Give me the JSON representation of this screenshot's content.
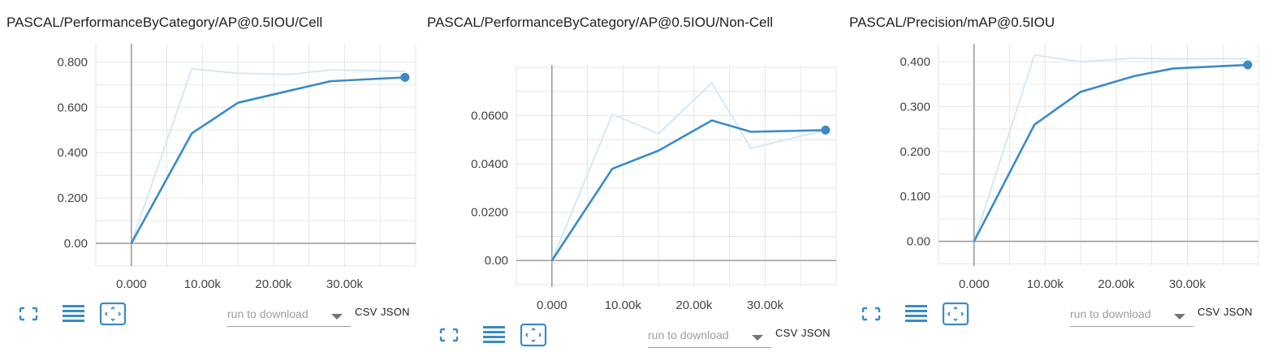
{
  "cards": [
    {
      "title": "PASCAL/PerformanceByCategory/AP@0.5IOU/Cell",
      "toolbar": {
        "fullscreen_icon": "fullscreen-icon",
        "lines_icon": "data-table-icon",
        "fit_icon": "fit-domain-icon",
        "select_placeholder": "run to download",
        "csv_label": "CSV",
        "json_label": "JSON"
      }
    },
    {
      "title": "PASCAL/PerformanceByCategory/AP@0.5IOU/Non-Cell",
      "toolbar": {
        "fullscreen_icon": "fullscreen-icon",
        "lines_icon": "data-table-icon",
        "fit_icon": "fit-domain-icon",
        "select_placeholder": "run to download",
        "csv_label": "CSV",
        "json_label": "JSON"
      }
    },
    {
      "title": "PASCAL/Precision/mAP@0.5IOU",
      "toolbar": {
        "fullscreen_icon": "fullscreen-icon",
        "lines_icon": "data-table-icon",
        "fit_icon": "fit-domain-icon",
        "select_placeholder": "run to download",
        "csv_label": "CSV",
        "json_label": "JSON"
      }
    }
  ],
  "chart_data": [
    {
      "type": "line",
      "title": "PASCAL/PerformanceByCategory/AP@0.5IOU/Cell",
      "xlim": [
        -5000,
        40000
      ],
      "ylim": [
        -0.1,
        0.88
      ],
      "xticks": [
        0,
        10000,
        20000,
        30000
      ],
      "xtick_labels": [
        "0.000",
        "10.00k",
        "20.00k",
        "30.00k"
      ],
      "yticks": [
        0,
        0.2,
        0.4,
        0.6,
        0.8
      ],
      "ytick_labels": [
        "0.00",
        "0.200",
        "0.400",
        "0.600",
        "0.800"
      ],
      "grid": true,
      "colors": {
        "smoothed": "#3a8bc8",
        "raw": "#d4e8f8"
      },
      "series": [
        {
          "role": "raw",
          "x": [
            0,
            8500,
            15000,
            22500,
            28000,
            38500
          ],
          "y": [
            0,
            0.77,
            0.75,
            0.745,
            0.765,
            0.758
          ]
        },
        {
          "role": "smoothed",
          "x": [
            0,
            8500,
            15000,
            22500,
            28000,
            38500
          ],
          "y": [
            0,
            0.485,
            0.62,
            0.675,
            0.715,
            0.732
          ]
        }
      ]
    },
    {
      "type": "line",
      "title": "PASCAL/PerformanceByCategory/AP@0.5IOU/Non-Cell",
      "xlim": [
        -5000,
        40000
      ],
      "ylim": [
        -0.011,
        0.081
      ],
      "xticks": [
        0,
        10000,
        20000,
        30000
      ],
      "xtick_labels": [
        "0.000",
        "10.00k",
        "20.00k",
        "30.00k"
      ],
      "yticks": [
        0,
        0.02,
        0.04,
        0.06
      ],
      "ytick_labels": [
        "0.00",
        "0.0200",
        "0.0400",
        "0.0600"
      ],
      "grid": true,
      "colors": {
        "smoothed": "#3a8bc8",
        "raw": "#d4e8f8"
      },
      "series": [
        {
          "role": "raw",
          "x": [
            0,
            8500,
            15000,
            22500,
            28000,
            38500
          ],
          "y": [
            0,
            0.0605,
            0.0525,
            0.0735,
            0.0465,
            0.054
          ]
        },
        {
          "role": "smoothed",
          "x": [
            0,
            8500,
            15000,
            22500,
            28000,
            38500
          ],
          "y": [
            0,
            0.038,
            0.0455,
            0.058,
            0.0533,
            0.054
          ]
        }
      ]
    },
    {
      "type": "line",
      "title": "PASCAL/Precision/mAP@0.5IOU",
      "xlim": [
        -5000,
        40000
      ],
      "ylim": [
        -0.055,
        0.44
      ],
      "xticks": [
        0,
        10000,
        20000,
        30000
      ],
      "xtick_labels": [
        "0.000",
        "10.00k",
        "20.00k",
        "30.00k"
      ],
      "yticks": [
        0,
        0.1,
        0.2,
        0.3,
        0.4
      ],
      "ytick_labels": [
        "0.00",
        "0.100",
        "0.200",
        "0.300",
        "0.400"
      ],
      "grid": true,
      "colors": {
        "smoothed": "#3a8bc8",
        "raw": "#d4e8f8"
      },
      "series": [
        {
          "role": "raw",
          "x": [
            0,
            8500,
            15000,
            22500,
            28000,
            38500
          ],
          "y": [
            0,
            0.415,
            0.4,
            0.408,
            0.406,
            0.407
          ]
        },
        {
          "role": "smoothed",
          "x": [
            0,
            8500,
            15000,
            22500,
            28000,
            38500
          ],
          "y": [
            0,
            0.26,
            0.333,
            0.368,
            0.385,
            0.393
          ]
        }
      ]
    }
  ]
}
